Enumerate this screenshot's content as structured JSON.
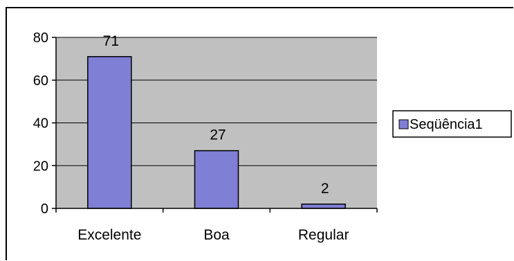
{
  "chart_data": {
    "type": "bar",
    "categories": [
      "Excelente",
      "Boa",
      "Regular"
    ],
    "series": [
      {
        "name": "Seqüência1",
        "values": [
          71,
          27,
          2
        ],
        "color": "#7f7fd5"
      }
    ],
    "data_labels": [
      "71",
      "27",
      "2"
    ],
    "ylim": [
      0,
      80
    ],
    "yticks": [
      0,
      20,
      40,
      60,
      80
    ],
    "ytick_labels": [
      "0",
      "20",
      "40",
      "60",
      "80"
    ],
    "grid": true,
    "plot_background": "#c0c0c0",
    "legend": {
      "position": "right",
      "entries": [
        "Seqüência1"
      ]
    }
  }
}
